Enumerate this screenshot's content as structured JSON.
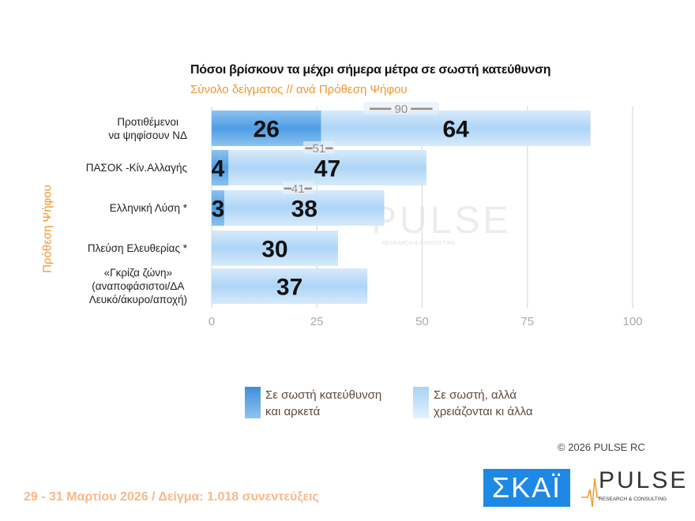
{
  "chart_data": {
    "type": "bar",
    "stacked": true,
    "orientation": "horizontal",
    "title": "Πόσοι βρίσκουν τα μέχρι σήμερα μέτρα σε σωστή κατεύθυνση",
    "subtitle": "Σύνολο δείγματος // ανά Πρόθεση  Ψήφου",
    "ylabel": "Πρόθεση  Ψήφου",
    "categories": [
      "Προτιθέμενοι\nνα ψηφίσουν ΝΔ",
      "ΠΑΣΟΚ -Κίν.Αλλαγής",
      "Ελληνική Λύση *",
      "Πλεύση Ελευθερίας *",
      "«Γκρίζα ζώνη»\n(αναποφάσιστοι/ΔΑ\nΛευκό/άκυρο/αποχή)"
    ],
    "series": [
      {
        "name": "Σε σωστή κατεύθυνση\nκαι αρκετά",
        "values": [
          26,
          4,
          3,
          null,
          null
        ],
        "color": "#5aa6e6"
      },
      {
        "name": "Σε σωστή, αλλά\nχρειάζονται κι άλλα",
        "values": [
          64,
          47,
          38,
          30,
          37
        ],
        "color": "#b8dbf8"
      }
    ],
    "totals": [
      90,
      51,
      41,
      null,
      null
    ],
    "xlim": [
      0,
      100
    ],
    "xticks": [
      0,
      25,
      50,
      75,
      100
    ],
    "grid": true,
    "legend": "bottom"
  },
  "copyright": "©  2026  PULSE RC",
  "footer": "29 - 31  Μαρτίου 2026  /  Δείγμα:  1.018 συνεντεύξεις",
  "logos": {
    "skai": "ΣΚΑΪ",
    "pulse": "PULSE",
    "pulse_sub": "RESEARCH & CONSULTING"
  }
}
